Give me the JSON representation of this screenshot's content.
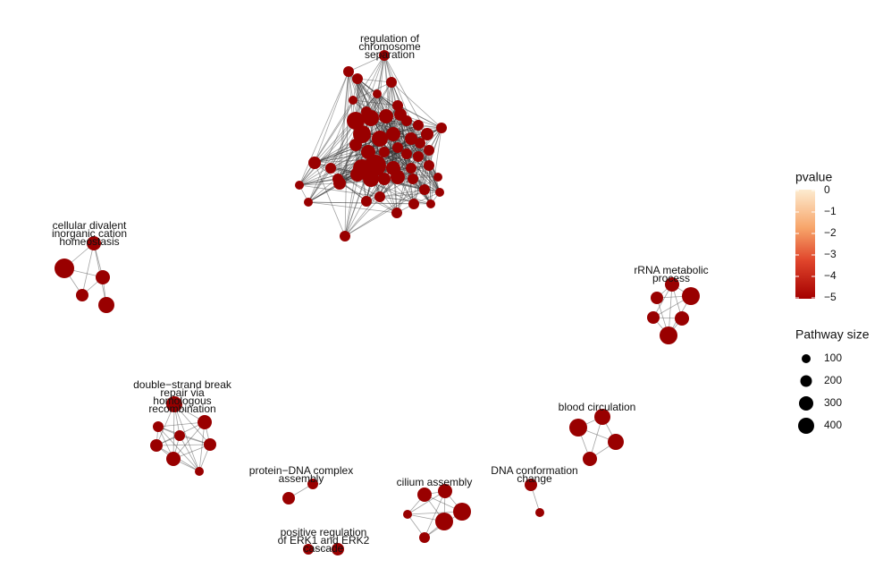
{
  "clusters": [
    {
      "label": [
        "regulation of",
        "chromosome",
        "separation"
      ]
    },
    {
      "label": [
        "cellular divalent",
        "inorganic cation",
        "homeostasis"
      ]
    },
    {
      "label": [
        "rRNA metabolic",
        "process"
      ]
    },
    {
      "label": [
        "double−strand break",
        "repair via",
        "homologous",
        "recombination"
      ]
    },
    {
      "label": [
        "blood circulation"
      ]
    },
    {
      "label": [
        "protein−DNA complex",
        "assembly"
      ]
    },
    {
      "label": [
        "positive regulation",
        "of ERK1 and ERK2",
        "cascade"
      ]
    },
    {
      "label": [
        "cilium assembly"
      ]
    },
    {
      "label": [
        "DNA conformation",
        "change"
      ]
    }
  ],
  "legend": {
    "color_title": "pvalue",
    "color_ticks": [
      "0",
      "−1",
      "−2",
      "−3",
      "−4",
      "−5"
    ],
    "size_title": "Pathway size",
    "size_ticks": [
      "100",
      "200",
      "300",
      "400"
    ]
  }
}
